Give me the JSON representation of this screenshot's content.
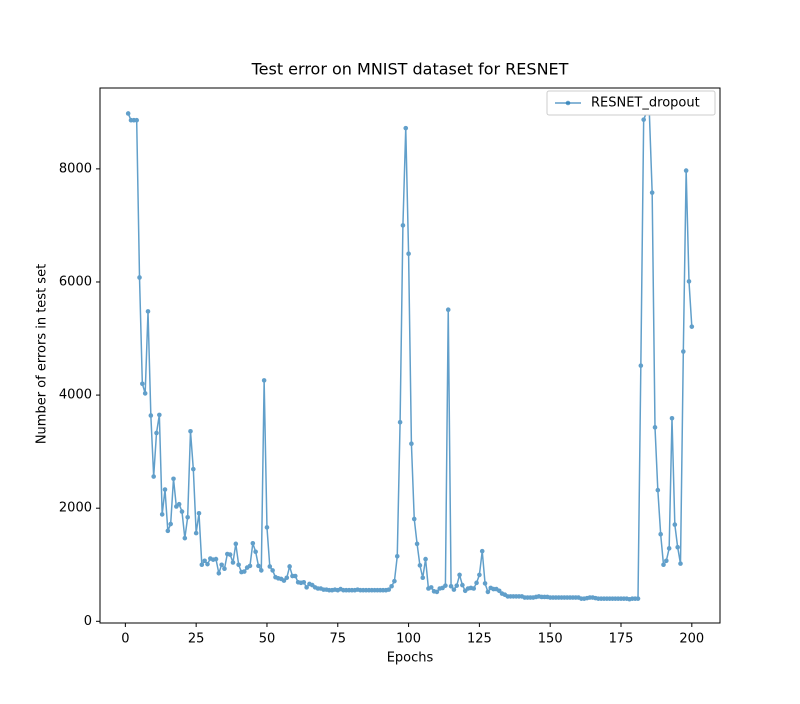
{
  "chart_data": {
    "type": "line",
    "title": "Test error on MNIST dataset for RESNET",
    "x_label": "Epochs",
    "y_label": "Number of errors in test set",
    "x": [
      1,
      2,
      3,
      4,
      5,
      6,
      7,
      8,
      9,
      10,
      11,
      12,
      13,
      14,
      15,
      16,
      17,
      18,
      19,
      20,
      21,
      22,
      23,
      24,
      25,
      26,
      27,
      28,
      29,
      30,
      31,
      32,
      33,
      34,
      35,
      36,
      37,
      38,
      39,
      40,
      41,
      42,
      43,
      44,
      45,
      46,
      47,
      48,
      49,
      50,
      51,
      52,
      53,
      54,
      55,
      56,
      57,
      58,
      59,
      60,
      61,
      62,
      63,
      64,
      65,
      66,
      67,
      68,
      69,
      70,
      71,
      72,
      73,
      74,
      75,
      76,
      77,
      78,
      79,
      80,
      81,
      82,
      83,
      84,
      85,
      86,
      87,
      88,
      89,
      90,
      91,
      92,
      93,
      94,
      95,
      96,
      97,
      98,
      99,
      100,
      101,
      102,
      103,
      104,
      105,
      106,
      107,
      108,
      109,
      110,
      111,
      112,
      113,
      114,
      115,
      116,
      117,
      118,
      119,
      120,
      121,
      122,
      123,
      124,
      125,
      126,
      127,
      128,
      129,
      130,
      131,
      132,
      133,
      134,
      135,
      136,
      137,
      138,
      139,
      140,
      141,
      142,
      143,
      144,
      145,
      146,
      147,
      148,
      149,
      150,
      151,
      152,
      153,
      154,
      155,
      156,
      157,
      158,
      159,
      160,
      161,
      162,
      163,
      164,
      165,
      166,
      167,
      168,
      169,
      170,
      171,
      172,
      173,
      174,
      175,
      176,
      177,
      178,
      179,
      180,
      181,
      182,
      183,
      184,
      185,
      186,
      187,
      188,
      189,
      190,
      191,
      192,
      193,
      194,
      195,
      196,
      197,
      198,
      199,
      200
    ],
    "series": [
      {
        "name": "RESNET_dropout",
        "color": "#1f77b4",
        "values": [
          8980,
          8860,
          8860,
          8860,
          6080,
          4200,
          4030,
          5480,
          3640,
          2560,
          3330,
          3650,
          1890,
          2330,
          1600,
          1720,
          2520,
          2030,
          2070,
          1940,
          1470,
          1840,
          3360,
          2690,
          1560,
          1910,
          1000,
          1070,
          1010,
          1110,
          1090,
          1100,
          850,
          1000,
          930,
          1190,
          1180,
          1040,
          1370,
          1000,
          870,
          880,
          950,
          980,
          1380,
          1230,
          980,
          900,
          4260,
          1660,
          970,
          900,
          780,
          760,
          750,
          720,
          770,
          970,
          800,
          800,
          690,
          680,
          690,
          600,
          660,
          640,
          600,
          580,
          580,
          560,
          560,
          550,
          550,
          560,
          550,
          570,
          550,
          550,
          550,
          550,
          550,
          560,
          550,
          550,
          550,
          550,
          550,
          550,
          550,
          550,
          550,
          550,
          560,
          620,
          710,
          1150,
          3520,
          7000,
          8720,
          6500,
          3140,
          1810,
          1370,
          990,
          770,
          1100,
          580,
          600,
          530,
          520,
          580,
          590,
          630,
          5510,
          620,
          560,
          630,
          820,
          640,
          540,
          580,
          590,
          580,
          680,
          820,
          1240,
          670,
          520,
          590,
          570,
          570,
          540,
          490,
          470,
          440,
          440,
          440,
          440,
          440,
          440,
          420,
          420,
          420,
          420,
          430,
          440,
          430,
          430,
          430,
          420,
          420,
          420,
          420,
          420,
          420,
          420,
          420,
          420,
          420,
          420,
          400,
          400,
          410,
          420,
          420,
          410,
          400,
          400,
          400,
          400,
          400,
          400,
          400,
          400,
          400,
          400,
          400,
          390,
          400,
          400,
          400,
          4520,
          8870,
          9000,
          9000,
          7580,
          3430,
          2320,
          1540,
          1000,
          1070,
          1290,
          3590,
          1710,
          1310,
          1020,
          4770,
          7970,
          6010,
          5210
        ]
      }
    ],
    "xlim": [
      -8.95,
      209.95
    ],
    "ylim": [
      -30,
      9430
    ],
    "xticks": [
      0,
      25,
      50,
      75,
      100,
      125,
      150,
      175,
      200
    ],
    "yticks": [
      0,
      2000,
      4000,
      6000,
      8000
    ],
    "legend": "upper right"
  }
}
